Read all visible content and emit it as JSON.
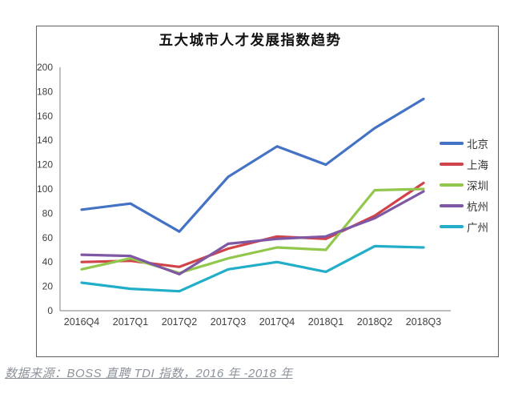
{
  "chart": {
    "title": "五大城市人才发展指数趋势",
    "source_note": "数据来源：BOSS 直聘 TDI 指数，2016 年 -2018 年"
  },
  "chart_data": {
    "type": "line",
    "title": "五大城市人才发展指数趋势",
    "categories": [
      "2016Q4",
      "2017Q1",
      "2017Q2",
      "2017Q3",
      "2017Q4",
      "2018Q1",
      "2018Q2",
      "2018Q3"
    ],
    "series": [
      {
        "id": "beijing",
        "name": "北京",
        "color": "#4472C4",
        "values": [
          83,
          88,
          65,
          110,
          135,
          120,
          150,
          174
        ]
      },
      {
        "id": "shanghai",
        "name": "上海",
        "color": "#D04349",
        "values": [
          40,
          41,
          36,
          51,
          61,
          59,
          78,
          105
        ]
      },
      {
        "id": "shenzhen",
        "name": "深圳",
        "color": "#92C74E",
        "values": [
          34,
          43,
          31,
          43,
          52,
          50,
          99,
          100
        ]
      },
      {
        "id": "hangzhou",
        "name": "杭州",
        "color": "#7E57A5",
        "values": [
          46,
          45,
          30,
          55,
          59,
          61,
          76,
          98
        ]
      },
      {
        "id": "guangzhou",
        "name": "广州",
        "color": "#22AEC8",
        "values": [
          23,
          18,
          16,
          34,
          40,
          32,
          53,
          52
        ]
      }
    ],
    "ylim": [
      0,
      200
    ],
    "yticks": [
      0,
      20,
      40,
      60,
      80,
      100,
      120,
      140,
      160,
      180,
      200
    ],
    "grid": false,
    "legend_position": "right",
    "axis_color": "#969696"
  }
}
